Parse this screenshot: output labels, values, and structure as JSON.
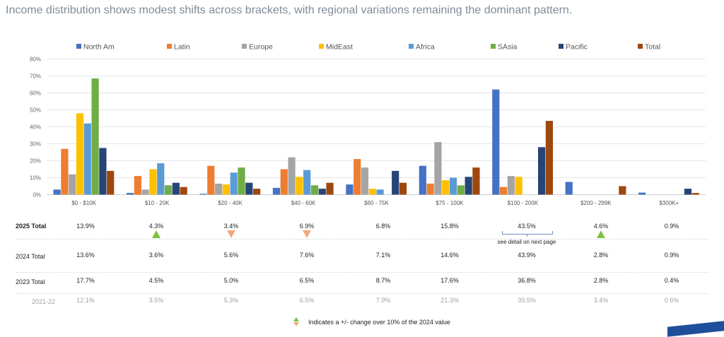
{
  "title": "Income distribution shows modest shifts across brackets, with regional variations remaining the dominant pattern.",
  "chart_data": {
    "type": "bar",
    "categories": [
      "$0 - $10K",
      "$10 - 20K",
      "$20 - 40K",
      "$40 - 60K",
      "$60 - 75K",
      "$75 - 100K",
      "$100 - 200K",
      "$200 - 299K",
      "$300K+"
    ],
    "yticks": [
      "0%",
      "10%",
      "20%",
      "30%",
      "40%",
      "50%",
      "60%",
      "70%",
      "80%"
    ],
    "ylim": [
      0,
      80
    ],
    "legend_position": "top",
    "series": [
      {
        "name": "North Am",
        "color": "#4472c4",
        "values": [
          3,
          1,
          0.5,
          4,
          6,
          17,
          62,
          7.5,
          1.2
        ]
      },
      {
        "name": "Latin",
        "color": "#ed7d31",
        "values": [
          27,
          11,
          17,
          15,
          21,
          6.5,
          4.5,
          0,
          0
        ]
      },
      {
        "name": "Europe",
        "color": "#a5a5a5",
        "values": [
          12,
          3,
          6.5,
          22,
          16,
          31,
          11,
          0,
          0
        ]
      },
      {
        "name": "MidEast",
        "color": "#ffc000",
        "values": [
          48,
          15,
          6,
          10.5,
          3.5,
          8.5,
          10.5,
          0,
          0
        ]
      },
      {
        "name": "Africa",
        "color": "#5b9bd5",
        "values": [
          42,
          18.5,
          13,
          14.5,
          3,
          10,
          0,
          0,
          0
        ]
      },
      {
        "name": "SAsia",
        "color": "#70ad47",
        "values": [
          68.5,
          5.5,
          16,
          5.5,
          0,
          5.5,
          0,
          0,
          0
        ]
      },
      {
        "name": "Pacific",
        "color": "#264478",
        "values": [
          27.5,
          7,
          7,
          3.5,
          14,
          10.5,
          28,
          0,
          3.5
        ]
      },
      {
        "name": "Total",
        "color": "#9e480e",
        "values": [
          14,
          4.5,
          3.5,
          7,
          7,
          16,
          43.5,
          5,
          1
        ]
      }
    ]
  },
  "table": {
    "rows": [
      {
        "label": "2025 Total",
        "values": [
          "13.9%",
          "4.3%",
          "3.4%",
          "6.9%",
          "6.8%",
          "15.8%",
          "43.5%",
          "4.6%",
          "0.9%"
        ]
      },
      {
        "label": "2024 Total",
        "values": [
          "13.6%",
          "3.6%",
          "5.6%",
          "7.6%",
          "7.1%",
          "14.6%",
          "43.9%",
          "2.8%",
          "0.9%"
        ]
      },
      {
        "label": "2023 Total",
        "values": [
          "17.7%",
          "4.5%",
          "5.0%",
          "6.5%",
          "8.7%",
          "17.6%",
          "36.8%",
          "2.8%",
          "0.4%"
        ]
      },
      {
        "label": "2021-22",
        "values": [
          "12.1%",
          "3.5%",
          "5.3%",
          "6.5%",
          "7.9%",
          "21.3%",
          "39.5%",
          "3.4%",
          "0.6%"
        ]
      }
    ],
    "indicators": [
      null,
      "up",
      "down",
      "down",
      null,
      null,
      null,
      "up",
      null
    ],
    "detail_note": "see detail on next page",
    "indicator_colors": {
      "up": "#7dc142",
      "down": "#f2a97a"
    }
  },
  "legend_note": "Indicates a +/- change over 10% of the 2024 value"
}
